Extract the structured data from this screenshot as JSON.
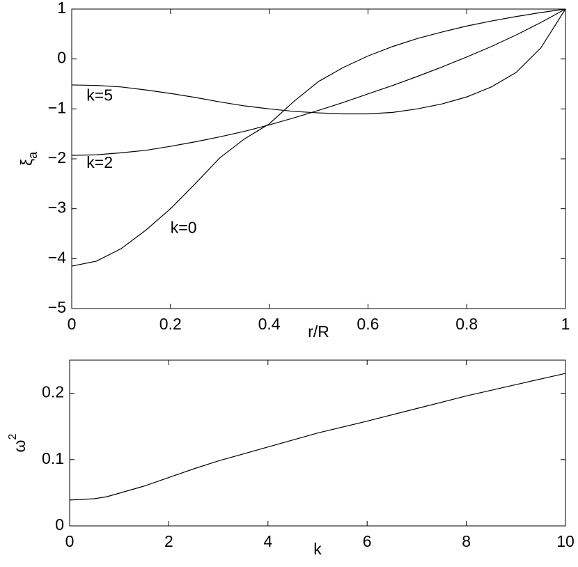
{
  "chart_data": [
    {
      "type": "line",
      "xlabel": "r/R",
      "ylabel": {
        "symbol": "ξ",
        "subscript": "a"
      },
      "xlim": [
        0,
        1
      ],
      "ylim": [
        -5,
        1
      ],
      "xticks": [
        0,
        0.2,
        0.4,
        0.6,
        0.8,
        1
      ],
      "yticks": [
        {
          "value": -5,
          "label": "−5"
        },
        {
          "value": -4,
          "label": "−4"
        },
        {
          "value": -3,
          "label": "−3"
        },
        {
          "value": -2,
          "label": "−2"
        },
        {
          "value": -1,
          "label": "−1"
        },
        0,
        1
      ],
      "annotations": [
        "k=5",
        "k=2",
        "k=0"
      ],
      "x": [
        0,
        0.05,
        0.1,
        0.15,
        0.2,
        0.25,
        0.3,
        0.35,
        0.4,
        0.45,
        0.5,
        0.55,
        0.6,
        0.65,
        0.7,
        0.75,
        0.8,
        0.85,
        0.9,
        0.95,
        1
      ],
      "series": [
        {
          "color": "#000000",
          "values": [
            -0.52,
            -0.53,
            -0.56,
            -0.62,
            -0.69,
            -0.77,
            -0.86,
            -0.94,
            -1.0,
            -1.05,
            -1.08,
            -1.1,
            -1.1,
            -1.07,
            -1.0,
            -0.9,
            -0.76,
            -0.56,
            -0.27,
            0.22,
            1
          ]
        },
        {
          "color": "#000000",
          "values": [
            -1.93,
            -1.92,
            -1.88,
            -1.83,
            -1.75,
            -1.66,
            -1.56,
            -1.45,
            -1.32,
            -1.18,
            -1.03,
            -0.87,
            -0.7,
            -0.53,
            -0.35,
            -0.16,
            0.04,
            0.25,
            0.48,
            0.73,
            1
          ]
        },
        {
          "color": "#000000",
          "values": [
            -4.15,
            -4.05,
            -3.8,
            -3.43,
            -3.0,
            -2.5,
            -1.98,
            -1.6,
            -1.3,
            -0.85,
            -0.45,
            -0.17,
            0.06,
            0.25,
            0.41,
            0.54,
            0.66,
            0.76,
            0.85,
            0.93,
            1
          ]
        }
      ]
    },
    {
      "type": "line",
      "xlabel": "k",
      "ylabel": {
        "symbol": "ω",
        "superscript": "2"
      },
      "xlim": [
        0,
        10
      ],
      "ylim": [
        0,
        0.25
      ],
      "xticks": [
        0,
        2,
        4,
        6,
        8,
        10
      ],
      "yticks": [
        0,
        0.1,
        0.2
      ],
      "x": [
        0,
        0.5,
        0.75,
        1.5,
        2.5,
        3,
        4,
        5,
        6,
        7,
        8,
        9,
        10
      ],
      "series": [
        {
          "color": "#000000",
          "values": [
            0.039,
            0.041,
            0.044,
            0.06,
            0.086,
            0.098,
            0.119,
            0.14,
            0.158,
            0.177,
            0.196,
            0.213,
            0.23
          ]
        }
      ]
    }
  ]
}
